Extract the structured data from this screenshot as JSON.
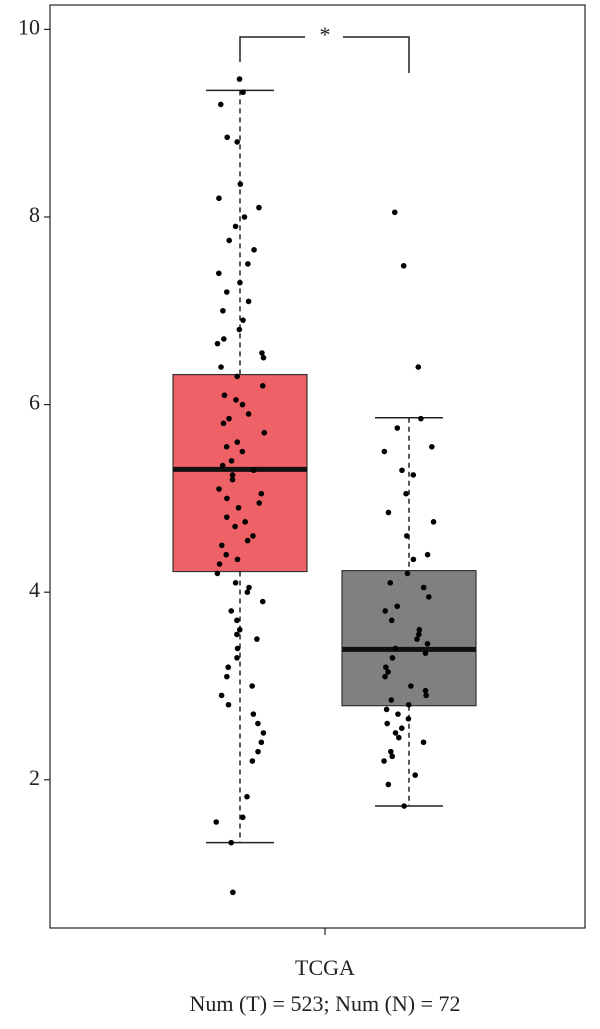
{
  "chart_data": {
    "type": "box",
    "categories": [
      "TCGA"
    ],
    "x_label": "Num (T) = 523; Num (N) = 72",
    "annotation": "*",
    "ylim": [
      0.42,
      10.26
    ],
    "yticks": [
      2,
      4,
      6,
      8,
      10
    ],
    "series": [
      {
        "color": "#ee6166",
        "q1": 4.22,
        "median": 5.31,
        "q3": 6.32,
        "whisker_low": 1.33,
        "whisker_high": 9.35,
        "points": [
          9.47,
          9.33,
          9.2,
          8.85,
          8.8,
          8.35,
          8.2,
          8.1,
          8.0,
          7.9,
          7.75,
          7.65,
          7.5,
          7.4,
          7.3,
          7.2,
          7.1,
          7.0,
          6.9,
          6.8,
          6.7,
          6.65,
          6.55,
          6.5,
          6.4,
          6.3,
          6.2,
          6.1,
          6.05,
          6.0,
          5.9,
          5.85,
          5.8,
          5.7,
          5.6,
          5.55,
          5.5,
          5.4,
          5.35,
          5.3,
          5.25,
          5.2,
          5.1,
          5.05,
          5.0,
          4.95,
          4.9,
          4.8,
          4.75,
          4.7,
          4.6,
          4.55,
          4.5,
          4.4,
          4.35,
          4.3,
          4.2,
          4.1,
          4.05,
          4.0,
          3.9,
          3.8,
          3.7,
          3.6,
          3.55,
          3.5,
          3.4,
          3.3,
          3.2,
          3.1,
          3.0,
          2.9,
          2.8,
          2.7,
          2.6,
          2.5,
          2.4,
          2.3,
          2.2,
          1.82,
          1.6,
          1.55,
          1.33,
          0.8
        ]
      },
      {
        "color": "#808080",
        "q1": 2.79,
        "median": 3.39,
        "q3": 4.23,
        "whisker_low": 1.72,
        "whisker_high": 5.86,
        "points": [
          8.05,
          7.48,
          6.4,
          5.85,
          5.75,
          5.55,
          5.5,
          5.3,
          5.25,
          5.05,
          4.85,
          4.75,
          4.6,
          4.4,
          4.35,
          4.2,
          4.1,
          4.05,
          3.95,
          3.85,
          3.8,
          3.7,
          3.6,
          3.55,
          3.5,
          3.45,
          3.4,
          3.35,
          3.3,
          3.2,
          3.15,
          3.1,
          3.0,
          2.95,
          2.9,
          2.85,
          2.8,
          2.75,
          2.7,
          2.65,
          2.6,
          2.55,
          2.5,
          2.45,
          2.4,
          2.3,
          2.25,
          2.2,
          2.05,
          1.95,
          1.72
        ]
      }
    ]
  }
}
